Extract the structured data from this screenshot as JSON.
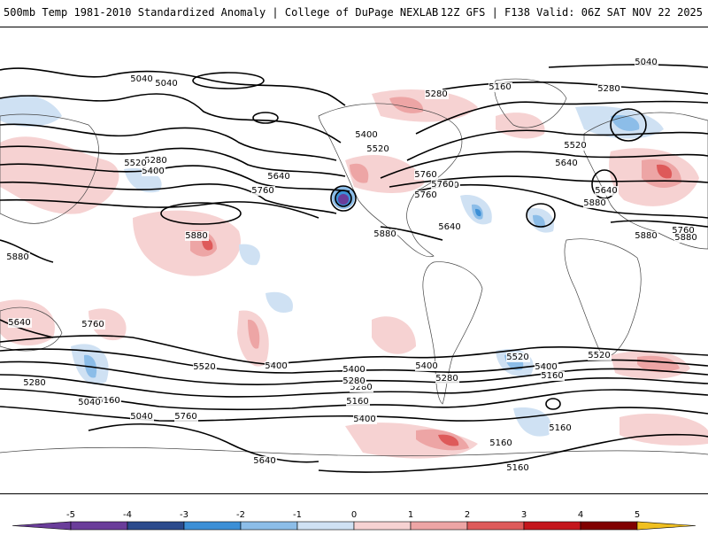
{
  "header": {
    "title_left": "500mb Temp 1981-2010 Standardized Anomaly | College of DuPage NEXLAB",
    "title_right": "12Z GFS | F138 Valid: 06Z SAT NOV 22 2025"
  },
  "colors": {
    "neg5": "#6a3d9a",
    "neg4": "#2b4a8c",
    "neg3": "#3c8fd6",
    "neg2": "#8cbde8",
    "neg1": "#cfe1f3",
    "zero": "#ffffff",
    "pos1": "#f6d2d2",
    "pos2": "#eda5a5",
    "pos3": "#de5a5a",
    "pos4": "#c4161c",
    "pos5": "#800000",
    "pos6": "#f0c020"
  },
  "contour_labels": [
    {
      "text": "5040"
    },
    {
      "text": "5040"
    },
    {
      "text": "5040"
    },
    {
      "text": "5160"
    },
    {
      "text": "5280"
    },
    {
      "text": "5280"
    },
    {
      "text": "5280"
    },
    {
      "text": "5400"
    },
    {
      "text": "5400"
    },
    {
      "text": "5520"
    },
    {
      "text": "5520"
    },
    {
      "text": "5520"
    },
    {
      "text": "5640"
    },
    {
      "text": "5640"
    },
    {
      "text": "5640"
    },
    {
      "text": "5760"
    },
    {
      "text": "5760"
    },
    {
      "text": "5760"
    },
    {
      "text": "5880"
    },
    {
      "text": "5880"
    },
    {
      "text": "5880"
    },
    {
      "text": "5880"
    },
    {
      "text": "5880"
    },
    {
      "text": "5760"
    },
    {
      "text": "5640"
    },
    {
      "text": "5760"
    },
    {
      "text": "5520"
    },
    {
      "text": "5400"
    },
    {
      "text": "5280"
    },
    {
      "text": "5160"
    },
    {
      "text": "5040"
    },
    {
      "text": "5040"
    },
    {
      "text": "5760"
    },
    {
      "text": "5640"
    },
    {
      "text": "5520"
    },
    {
      "text": "5400"
    },
    {
      "text": "5280"
    },
    {
      "text": "5160"
    },
    {
      "text": "5400"
    },
    {
      "text": "5280"
    },
    {
      "text": "5520"
    },
    {
      "text": "5400"
    },
    {
      "text": "5160"
    },
    {
      "text": "5160"
    },
    {
      "text": "5160"
    },
    {
      "text": "5160"
    },
    {
      "text": "5400"
    },
    {
      "text": "5280"
    },
    {
      "text": "5640"
    },
    {
      "text": "5760"
    },
    {
      "text": "5880"
    },
    {
      "text": "5760"
    }
  ],
  "colorbar": {
    "ticks": [
      "-5",
      "-4",
      "-3",
      "-2",
      "-1",
      "0",
      "1",
      "2",
      "3",
      "4",
      "5"
    ]
  }
}
